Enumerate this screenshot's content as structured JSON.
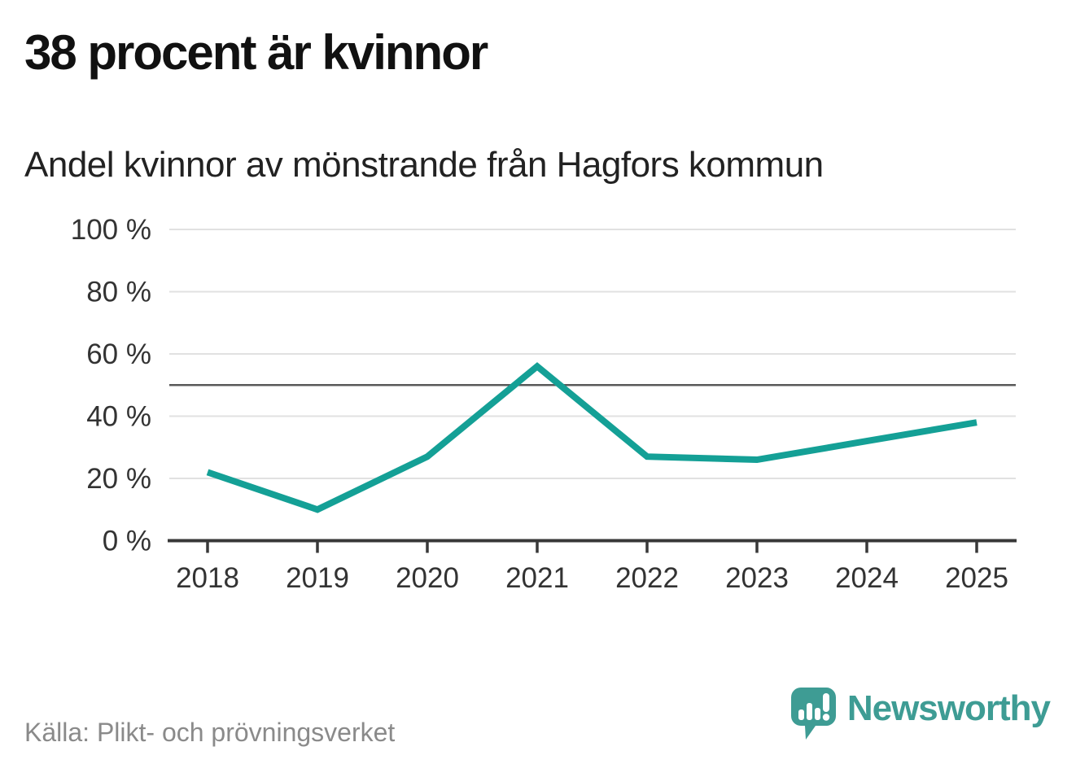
{
  "header": {
    "title": "38 procent är kvinnor",
    "subtitle": "Andel kvinnor av mönstrande från Hagfors kommun"
  },
  "chart_data": {
    "type": "line",
    "x": [
      2018,
      2019,
      2020,
      2021,
      2022,
      2023,
      2024,
      2025
    ],
    "xtick_labels": [
      "2018",
      "2019",
      "2020",
      "2021",
      "2022",
      "2023",
      "2024",
      "2025"
    ],
    "series": [
      {
        "name": "Andel kvinnor av mönstrande, Hagfors kommun",
        "values": [
          22,
          10,
          27,
          56,
          27,
          26,
          32,
          38
        ]
      }
    ],
    "unit": "%",
    "ylim": [
      0,
      100
    ],
    "yticks": [
      0,
      20,
      40,
      60,
      80,
      100
    ],
    "ytick_labels": [
      "0 %",
      "20 %",
      "40 %",
      "60 %",
      "80 %",
      "100 %"
    ],
    "reference_line": 50,
    "grid": "horizontal",
    "legend": "none",
    "title": "38 procent är kvinnor",
    "xlabel": "",
    "ylabel": ""
  },
  "footer": {
    "source": "Källa: Plikt- och prövningsverket",
    "brand": "Newsworthy",
    "logo_icon": "newsworthy-bubble-chart-icon"
  },
  "colors": {
    "line": "#14a096",
    "grid": "#e1e1e1",
    "reference_line": "#595959",
    "axis": "#383838",
    "title_text": "#111111",
    "subtitle_text": "#222222",
    "axis_text": "#333333",
    "muted_text": "#8a8a8a",
    "brand_teal": "#3e9c94",
    "background": "#ffffff"
  }
}
